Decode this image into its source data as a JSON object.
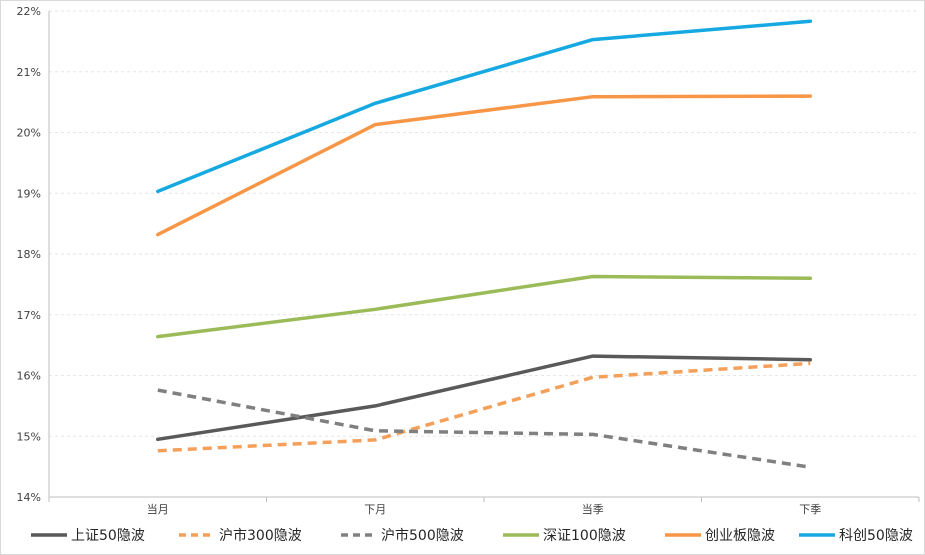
{
  "chart_data": {
    "type": "line",
    "title": "",
    "xlabel": "",
    "ylabel": "",
    "categories": [
      "当月",
      "下月",
      "当季",
      "下季"
    ],
    "ylim": [
      0.14,
      0.22
    ],
    "yticks": [
      0.14,
      0.15,
      0.16,
      0.17,
      0.18,
      0.19,
      0.2,
      0.21,
      0.22
    ],
    "ytick_labels": [
      "14%",
      "15%",
      "16%",
      "17%",
      "18%",
      "19%",
      "20%",
      "21%",
      "22%"
    ],
    "grid": true,
    "legend_position": "bottom",
    "series": [
      {
        "name": "上证50隐波",
        "values": [
          0.1495,
          0.155,
          0.1632,
          0.1626
        ],
        "color": "#595959",
        "dashed": false
      },
      {
        "name": "沪市300隐波",
        "values": [
          0.1476,
          0.1494,
          0.1597,
          0.162
        ],
        "color": "#f4a05a",
        "dashed": true
      },
      {
        "name": "沪市500隐波",
        "values": [
          0.1576,
          0.1509,
          0.1503,
          0.1449
        ],
        "color": "#808080",
        "dashed": true
      },
      {
        "name": "深证100隐波",
        "values": [
          0.1664,
          0.1709,
          0.1763,
          0.176
        ],
        "color": "#9bbb59",
        "dashed": false
      },
      {
        "name": "创业板隐波",
        "values": [
          0.1832,
          0.2013,
          0.2059,
          0.206
        ],
        "color": "#f79646",
        "dashed": false
      },
      {
        "name": "科创50隐波",
        "values": [
          0.1903,
          0.2048,
          0.2153,
          0.2183
        ],
        "color": "#16a9e1",
        "dashed": false
      }
    ]
  }
}
